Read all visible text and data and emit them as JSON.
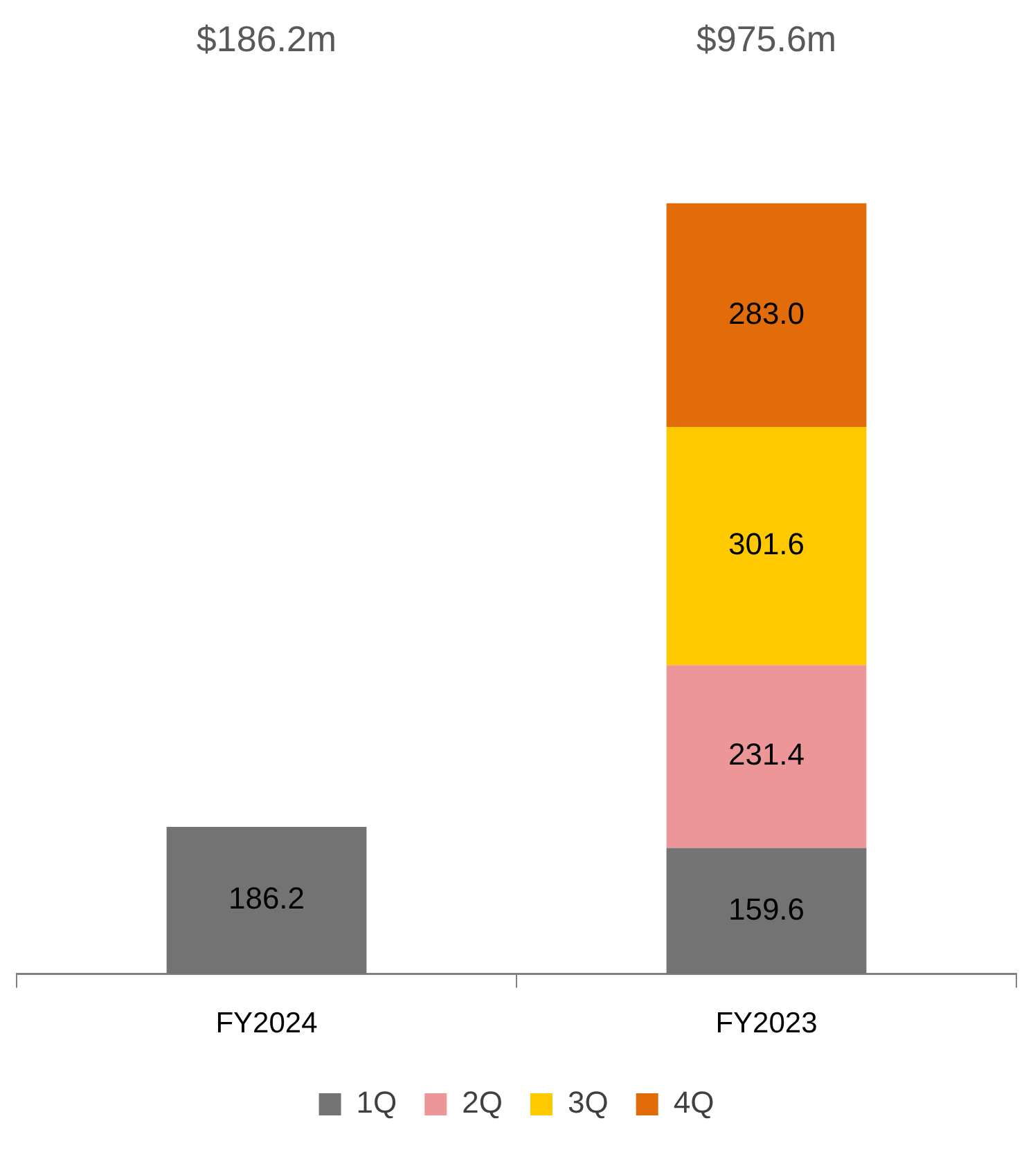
{
  "chart_data": {
    "type": "bar",
    "stacked": true,
    "categories": [
      "FY2024",
      "FY2023"
    ],
    "series": [
      {
        "name": "1Q",
        "color": "#737373",
        "values": [
          186.2,
          159.6
        ],
        "value_labels": [
          "186.2",
          "159.6"
        ]
      },
      {
        "name": "2Q",
        "color": "#ed9699",
        "values": [
          null,
          231.4
        ],
        "value_labels": [
          null,
          "231.4"
        ]
      },
      {
        "name": "3Q",
        "color": "#ffc900",
        "values": [
          null,
          301.6
        ],
        "value_labels": [
          null,
          "301.6"
        ]
      },
      {
        "name": "4Q",
        "color": "#e36c0a",
        "values": [
          null,
          283.0
        ],
        "value_labels": [
          null,
          "283.0"
        ]
      }
    ],
    "annotations": [
      "$186.2m",
      "$975.6m"
    ],
    "legend": "bottom",
    "grid": false
  }
}
